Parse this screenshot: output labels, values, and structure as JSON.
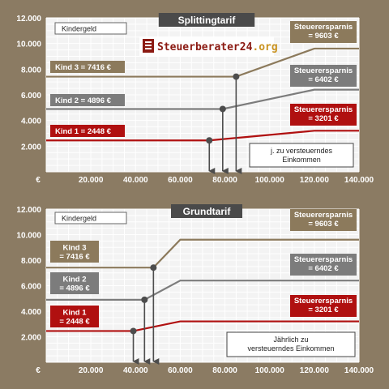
{
  "logo": {
    "name": "Steuerberater24",
    "tld": ".org"
  },
  "colors": {
    "kind3": "#8c7a5c",
    "kind2": "#7c7c7c",
    "kind1": "#b01010",
    "grid": "#f3f3f3",
    "bg": "#8b7b63"
  },
  "chart_data": [
    {
      "type": "line",
      "title": "Splittingtarif",
      "legend_box": "Kindergeld",
      "note": [
        "j. zu versteuerndes",
        "Einkommen"
      ],
      "xlim": [
        0,
        140000
      ],
      "ylim": [
        0,
        12000
      ],
      "x_ticks": [
        "€",
        "20.000",
        "40.000",
        "60.000",
        "80.000",
        "100.000",
        "120.000",
        "140.000"
      ],
      "y_ticks": [
        "2.000",
        "4.000",
        "6.000",
        "8.000",
        "10.000",
        "12.000"
      ],
      "series": [
        {
          "key": "kind3",
          "name": [
            "Kind 3 = 7416 €"
          ],
          "savings": [
            "Steuerersparnis",
            "= 9603 €"
          ],
          "x": [
            0,
            85000,
            120000,
            140000
          ],
          "y": [
            7416,
            7416,
            9603,
            9603
          ],
          "marker_x": 85000
        },
        {
          "key": "kind2",
          "name": [
            "Kind 2 = 4896 €"
          ],
          "savings": [
            "Steuerersparnis",
            "= 6402 €"
          ],
          "x": [
            0,
            79000,
            120000,
            140000
          ],
          "y": [
            4896,
            4896,
            6402,
            6402
          ],
          "marker_x": 79000
        },
        {
          "key": "kind1",
          "name": [
            "Kind 1 = 2448 €"
          ],
          "savings": [
            "Steuerersparnis",
            "= 3201 €"
          ],
          "x": [
            0,
            73000,
            120000,
            140000
          ],
          "y": [
            2448,
            2448,
            3201,
            3201
          ],
          "marker_x": 73000
        }
      ]
    },
    {
      "type": "line",
      "title": "Grundtarif",
      "legend_box": "Kindergeld",
      "note": [
        "Jährlich zu",
        "versteuerndes Einkommen"
      ],
      "xlim": [
        0,
        140000
      ],
      "ylim": [
        0,
        12000
      ],
      "x_ticks": [
        "€",
        "20.000",
        "40.000",
        "60.000",
        "80.000",
        "100.000",
        "120.000",
        "140.000"
      ],
      "y_ticks": [
        "2.000",
        "4.000",
        "6.000",
        "8.000",
        "10.000",
        "12.000"
      ],
      "series": [
        {
          "key": "kind3",
          "name": [
            "Kind 3",
            "= 7416 €"
          ],
          "savings": [
            "Steuerersparnis",
            "= 9603 €"
          ],
          "x": [
            0,
            48000,
            60000,
            140000
          ],
          "y": [
            7416,
            7416,
            9603,
            9603
          ],
          "marker_x": 48000
        },
        {
          "key": "kind2",
          "name": [
            "Kind 2",
            "= 4896 €"
          ],
          "savings": [
            "Steuerersparnis",
            "= 6402 €"
          ],
          "x": [
            0,
            44000,
            60000,
            140000
          ],
          "y": [
            4896,
            4896,
            6402,
            6402
          ],
          "marker_x": 44000
        },
        {
          "key": "kind1",
          "name": [
            "Kind 1",
            "= 2448 €"
          ],
          "savings": [
            "Steuerersparnis",
            "= 3201 €"
          ],
          "x": [
            0,
            39000,
            60000,
            140000
          ],
          "y": [
            2448,
            2448,
            3201,
            3201
          ],
          "marker_x": 39000
        }
      ]
    }
  ]
}
